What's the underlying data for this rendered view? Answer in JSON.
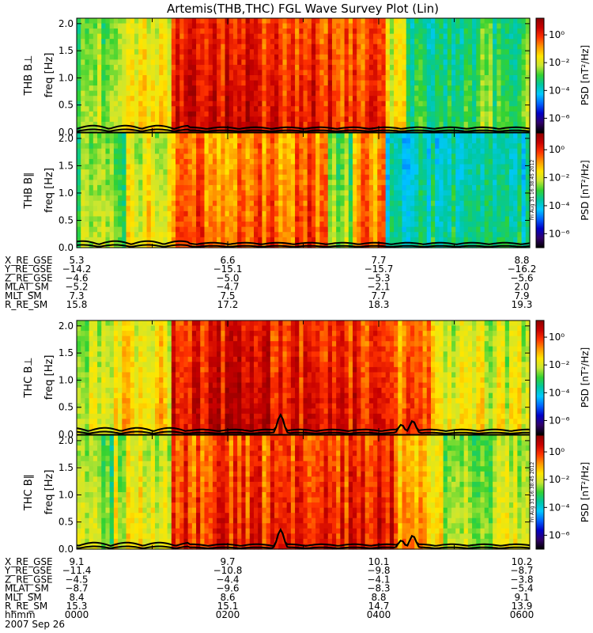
{
  "title": "Artemis(THB,THC) FGL Wave Survey Plot (Lin)",
  "date_label": "2007 Sep 26",
  "stamp": "Fri Aug 31 16:38:45 2012",
  "colorbar": {
    "label": "PSD [nT²/Hz]",
    "ticks": [
      "10⁰",
      "10⁻²",
      "10⁻⁴",
      "10⁻⁶"
    ],
    "tick_exponents": [
      0,
      -2,
      -4,
      -6
    ],
    "range_exponents": [
      -7,
      1.2
    ],
    "colors": [
      "#000000",
      "#30006a",
      "#0000c8",
      "#0064ff",
      "#00c8ff",
      "#00c8a0",
      "#32d232",
      "#c8e632",
      "#ffe600",
      "#ff9600",
      "#ff3200",
      "#c80000",
      "#8c0000"
    ]
  },
  "chart_data": [
    {
      "type": "heatmap",
      "probe": "THB",
      "component": "B⊥",
      "ylabel_probe": "THB B⊥",
      "ylabel": "freq [Hz]",
      "ylim": [
        0,
        2.1
      ],
      "yticks": [
        "0.0",
        "0.5",
        "1.0",
        "1.5",
        "2.0"
      ],
      "ytick_values": [
        0,
        0.5,
        1.0,
        1.5,
        2.0
      ],
      "z_label": "PSD [nT²/Hz]",
      "time_segments": [
        {
          "from": 0.0,
          "to": 0.09,
          "level": 0.52
        },
        {
          "from": 0.09,
          "to": 0.2,
          "level": 0.63
        },
        {
          "from": 0.2,
          "to": 0.38,
          "level": 0.85
        },
        {
          "from": 0.38,
          "to": 0.58,
          "level": 0.82
        },
        {
          "from": 0.58,
          "to": 0.68,
          "level": 0.78
        },
        {
          "from": 0.68,
          "to": 0.72,
          "level": 0.6
        },
        {
          "from": 0.72,
          "to": 0.88,
          "level": 0.44
        },
        {
          "from": 0.88,
          "to": 1.0,
          "level": 0.48
        }
      ],
      "overlay_peaks": []
    },
    {
      "type": "heatmap",
      "probe": "THB",
      "component": "B∥",
      "ylabel_probe": "THB B∥",
      "ylabel": "freq [Hz]",
      "ylim": [
        0,
        2.1
      ],
      "yticks": [
        "0.0",
        "0.5",
        "1.0",
        "1.5",
        "2.0"
      ],
      "ytick_values": [
        0,
        0.5,
        1.0,
        1.5,
        2.0
      ],
      "z_label": "PSD [nT²/Hz]",
      "time_segments": [
        {
          "from": 0.0,
          "to": 0.1,
          "level": 0.5
        },
        {
          "from": 0.1,
          "to": 0.2,
          "level": 0.6
        },
        {
          "from": 0.2,
          "to": 0.55,
          "level": 0.76
        },
        {
          "from": 0.55,
          "to": 0.6,
          "level": 0.5
        },
        {
          "from": 0.6,
          "to": 0.68,
          "level": 0.72
        },
        {
          "from": 0.68,
          "to": 1.0,
          "level": 0.38
        }
      ],
      "overlay_peaks": []
    },
    {
      "type": "heatmap",
      "probe": "THC",
      "component": "B⊥",
      "ylabel_probe": "THC B⊥",
      "ylabel": "freq [Hz]",
      "ylim": [
        0,
        2.1
      ],
      "yticks": [
        "0.0",
        "0.5",
        "1.0",
        "1.5",
        "2.0"
      ],
      "ytick_values": [
        0,
        0.5,
        1.0,
        1.5,
        2.0
      ],
      "z_label": "PSD [nT²/Hz]",
      "time_segments": [
        {
          "from": 0.0,
          "to": 0.08,
          "level": 0.54
        },
        {
          "from": 0.08,
          "to": 0.2,
          "level": 0.64
        },
        {
          "from": 0.2,
          "to": 0.45,
          "level": 0.86
        },
        {
          "from": 0.45,
          "to": 0.7,
          "level": 0.83
        },
        {
          "from": 0.7,
          "to": 0.78,
          "level": 0.74
        },
        {
          "from": 0.78,
          "to": 0.88,
          "level": 0.62
        },
        {
          "from": 0.88,
          "to": 1.0,
          "level": 0.58
        }
      ],
      "overlay_peaks": [
        {
          "hour": 2.7,
          "freq": 0.36
        },
        {
          "hour": 4.3,
          "freq": 0.18
        },
        {
          "hour": 4.45,
          "freq": 0.25
        }
      ]
    },
    {
      "type": "heatmap",
      "probe": "THC",
      "component": "B∥",
      "ylabel_probe": "THC B∥",
      "ylabel": "freq [Hz]",
      "ylim": [
        0,
        2.1
      ],
      "yticks": [
        "0.0",
        "0.5",
        "1.0",
        "1.5",
        "2.0"
      ],
      "ytick_values": [
        0,
        0.5,
        1.0,
        1.5,
        2.0
      ],
      "z_label": "PSD [nT²/Hz]",
      "time_segments": [
        {
          "from": 0.0,
          "to": 0.08,
          "level": 0.5
        },
        {
          "from": 0.08,
          "to": 0.2,
          "level": 0.58
        },
        {
          "from": 0.2,
          "to": 0.5,
          "level": 0.8
        },
        {
          "from": 0.5,
          "to": 0.7,
          "level": 0.82
        },
        {
          "from": 0.7,
          "to": 0.8,
          "level": 0.68
        },
        {
          "from": 0.8,
          "to": 1.0,
          "level": 0.55
        }
      ],
      "overlay_peaks": [
        {
          "hour": 2.7,
          "freq": 0.36
        },
        {
          "hour": 4.3,
          "freq": 0.16
        },
        {
          "hour": 4.45,
          "freq": 0.25
        }
      ]
    }
  ],
  "ephemeris_thb": {
    "rows": [
      {
        "label": "X_RE_GSE",
        "values": [
          "5.3",
          "6.6",
          "7.7",
          "8.8"
        ]
      },
      {
        "label": "Y_RE_GSE",
        "values": [
          "−14.2",
          "−15.1",
          "−15.7",
          "−16.2"
        ]
      },
      {
        "label": "Z_RE_GSE",
        "values": [
          "−4.6",
          "−5.0",
          "−5.3",
          "−5.6"
        ]
      },
      {
        "label": "MLAT_SM",
        "values": [
          "−5.2",
          "−4.7",
          "−2.1",
          "2.0"
        ]
      },
      {
        "label": "MLT_SM",
        "values": [
          "7.3",
          "7.5",
          "7.7",
          "7.9"
        ]
      },
      {
        "label": "R_RE_SM",
        "values": [
          "15.8",
          "17.2",
          "18.3",
          "19.3"
        ]
      }
    ]
  },
  "ephemeris_thc": {
    "rows": [
      {
        "label": "X_RE_GSE",
        "values": [
          "9.1",
          "9.7",
          "10.1",
          "10.2"
        ]
      },
      {
        "label": "Y_RE_GSE",
        "values": [
          "−11.4",
          "−10.8",
          "−9.8",
          "−8.7"
        ]
      },
      {
        "label": "Z_RE_GSE",
        "values": [
          "−4.5",
          "−4.4",
          "−4.1",
          "−3.8"
        ]
      },
      {
        "label": "MLAT_SM",
        "values": [
          "−8.7",
          "−9.6",
          "−8.3",
          "−5.4"
        ]
      },
      {
        "label": "MLT_SM",
        "values": [
          "8.4",
          "8.6",
          "8.8",
          "9.1"
        ]
      },
      {
        "label": "R_RE_SM",
        "values": [
          "15.3",
          "15.1",
          "14.7",
          "13.9"
        ]
      }
    ],
    "time_row": {
      "label": "hhmm",
      "values": [
        "0000",
        "0200",
        "0400",
        "0600"
      ]
    }
  }
}
